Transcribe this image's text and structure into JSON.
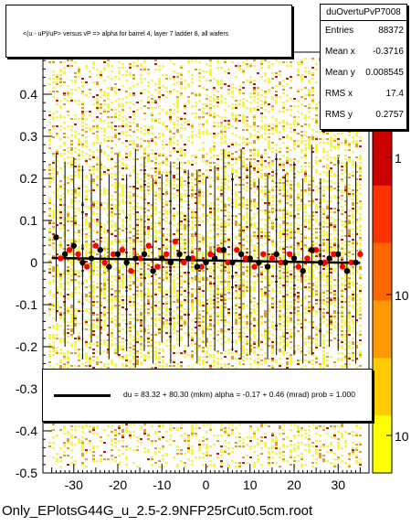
{
  "title": "<(u - uP)/uP> versus   vP => alpha for barrel 4, layer 7 ladder 8, all wafers",
  "stats": {
    "name": "duOvertuPvP7008",
    "rows": [
      {
        "key": "Entries",
        "value": "88372"
      },
      {
        "key": "Mean x",
        "value": "-0.3716"
      },
      {
        "key": "Mean y",
        "value": "0.008545"
      },
      {
        "key": "RMS x",
        "value": "17.4"
      },
      {
        "key": "RMS y",
        "value": "0.2757"
      }
    ]
  },
  "fit": {
    "text": "du =   83.32 +  80.30  (mkm) alpha =   -0.17 +   0.46  (mrad) prob = 1.000"
  },
  "footer": "Only_EPlotsG44G_u_2.5-2.9NFP25rCut0.5cm.root",
  "colors": {
    "heatmap_low": "#ffff00",
    "heatmap_mid": "#ff9900",
    "heatmap_high": "#ff0000",
    "points_red": "#ff0000",
    "points_black": "#000000",
    "palette_top": "#cc0000"
  },
  "chart_data": {
    "type": "scatter",
    "title": "<(u - uP)/uP> versus   vP => alpha for barrel 4, layer 7 ladder 8, all wafers",
    "xlim": [
      -37,
      37
    ],
    "ylim": [
      -0.5,
      0.5
    ],
    "x_ticks": [
      "-30",
      "-20",
      "-10",
      "0",
      "10",
      "20",
      "30"
    ],
    "y_ticks": [
      "-0.5",
      "-0.4",
      "-0.3",
      "-0.2",
      "-0.1",
      "0",
      "0.1",
      "0.2",
      "0.3",
      "0.4"
    ],
    "palette_ticks": [
      "1",
      "10",
      "10"
    ],
    "fit_line": {
      "y": 0.005,
      "slope": -0.00017
    },
    "series": [
      {
        "color": "#ff0000",
        "x": [
          -33,
          -31,
          -29,
          -27,
          -25,
          -23,
          -21,
          -19,
          -17,
          -15,
          -13,
          -11,
          -9,
          -7,
          -5,
          -3,
          -1,
          1,
          3,
          5,
          7,
          9,
          11,
          13,
          15,
          17,
          19,
          21,
          23,
          25,
          27,
          29,
          31,
          33,
          35
        ],
        "y": [
          0.01,
          0.03,
          0.02,
          -0.01,
          0.04,
          0.0,
          0.02,
          0.03,
          -0.02,
          0.01,
          0.04,
          -0.01,
          0.02,
          0.05,
          0.0,
          0.01,
          -0.01,
          0.02,
          0.03,
          0.0,
          0.03,
          0.01,
          -0.01,
          0.02,
          0.01,
          0.0,
          0.02,
          -0.01,
          0.01,
          0.03,
          0.0,
          0.02,
          -0.01,
          0.0,
          0.02
        ]
      },
      {
        "color": "#000000",
        "x": [
          -34,
          -32,
          -30,
          -28,
          -26,
          -24,
          -22,
          -20,
          -18,
          -16,
          -14,
          -12,
          -10,
          -8,
          -6,
          -4,
          -2,
          0,
          2,
          4,
          6,
          8,
          10,
          12,
          14,
          16,
          18,
          20,
          22,
          24,
          26,
          28,
          30,
          32,
          34
        ],
        "y": [
          0.06,
          0.02,
          0.04,
          0.0,
          0.01,
          0.03,
          -0.01,
          0.02,
          0.0,
          0.01,
          0.02,
          -0.02,
          0.01,
          0.0,
          0.02,
          0.01,
          -0.01,
          0.0,
          0.01,
          0.03,
          0.0,
          0.02,
          0.01,
          0.0,
          -0.01,
          0.02,
          0.0,
          0.01,
          -0.02,
          0.03,
          0.0,
          0.01,
          0.02,
          -0.02,
          0.0
        ],
        "err": [
          0.2,
          0.22,
          0.21,
          0.23,
          0.2,
          0.25,
          0.22,
          0.24,
          0.21,
          0.26,
          0.23,
          0.22,
          0.2,
          0.24,
          0.22,
          0.21,
          0.23,
          0.2,
          0.22,
          0.24,
          0.21,
          0.25,
          0.23,
          0.2,
          0.22,
          0.24,
          0.21,
          0.23,
          0.22,
          0.25,
          0.2,
          0.21,
          0.23,
          0.26,
          0.24
        ]
      }
    ]
  }
}
